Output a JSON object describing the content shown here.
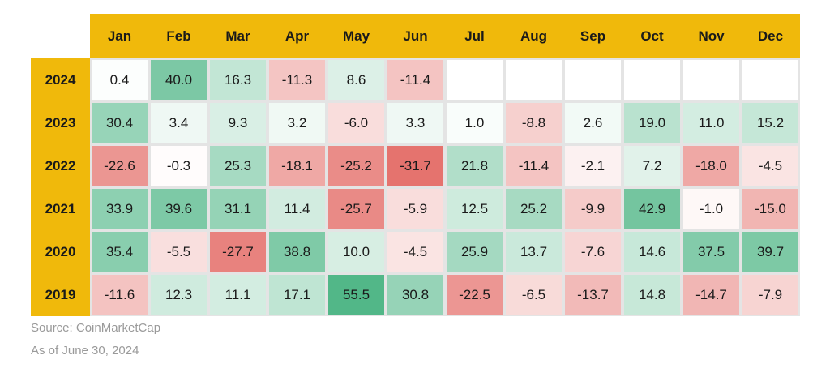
{
  "chart_data": {
    "type": "heatmap",
    "title": "",
    "columns": [
      "Jan",
      "Feb",
      "Mar",
      "Apr",
      "May",
      "Jun",
      "Jul",
      "Aug",
      "Sep",
      "Oct",
      "Nov",
      "Dec"
    ],
    "rows": [
      {
        "label": "2024",
        "values": [
          0.4,
          40.0,
          16.3,
          -11.3,
          8.6,
          -11.4,
          null,
          null,
          null,
          null,
          null,
          null
        ]
      },
      {
        "label": "2023",
        "values": [
          30.4,
          3.4,
          9.3,
          3.2,
          -6.0,
          3.3,
          1.0,
          -8.8,
          2.6,
          19.0,
          11.0,
          15.2
        ]
      },
      {
        "label": "2022",
        "values": [
          -22.6,
          -0.3,
          25.3,
          -18.1,
          -25.2,
          -31.7,
          21.8,
          -11.4,
          -2.1,
          7.2,
          -18.0,
          -4.5
        ]
      },
      {
        "label": "2021",
        "values": [
          33.9,
          39.6,
          31.1,
          11.4,
          -25.7,
          -5.9,
          12.5,
          25.2,
          -9.9,
          42.9,
          -1.0,
          -15.0
        ]
      },
      {
        "label": "2020",
        "values": [
          35.4,
          -5.5,
          -27.7,
          38.8,
          10.0,
          -4.5,
          25.9,
          13.7,
          -7.6,
          14.6,
          37.5,
          39.7
        ]
      },
      {
        "label": "2019",
        "values": [
          -11.6,
          12.3,
          11.1,
          17.1,
          55.5,
          30.8,
          -22.5,
          -6.5,
          -13.7,
          14.8,
          -14.7,
          -7.9
        ]
      }
    ],
    "colors": {
      "header": "#f0b90b",
      "positive_max": "#52b788",
      "negative_max": "#e5736e",
      "neutral": "#ffffff"
    }
  },
  "footer": {
    "source": "Source: CoinMarketCap",
    "as_of": "As of June 30, 2024"
  }
}
